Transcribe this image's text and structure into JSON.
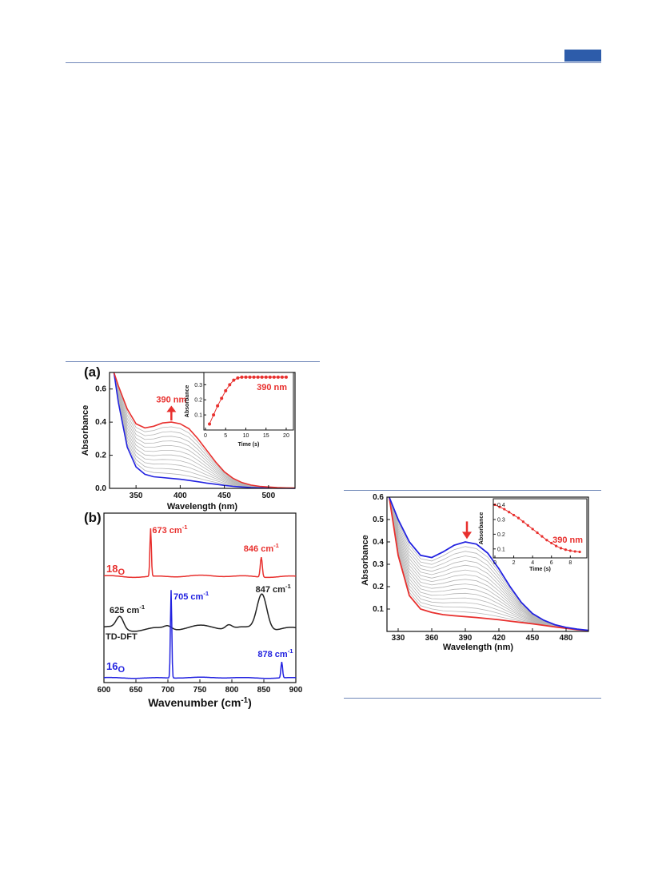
{
  "colors": {
    "rule": "#6f87b8",
    "badge": "#2d5caa",
    "red": "#e8302e",
    "blue": "#2222e0",
    "gray": "#b5b5b5",
    "black": "#222222"
  },
  "chart_data": [
    {
      "type": "line",
      "panel": "(a)",
      "xlabel": "Wavelength (nm)",
      "ylabel": "Absorbance",
      "xlim": [
        320,
        530
      ],
      "ylim": [
        0,
        0.7
      ],
      "xticks": [
        350,
        400,
        450,
        500
      ],
      "yticks": [
        0.0,
        0.2,
        0.4,
        0.6
      ],
      "annotation": "390 nm",
      "series": [
        {
          "role": "final",
          "color": "#e8302e",
          "x": [
            325,
            330,
            340,
            350,
            360,
            370,
            380,
            390,
            400,
            410,
            420,
            430,
            440,
            450,
            460,
            470,
            480,
            490,
            500,
            510,
            520,
            530
          ],
          "y": [
            0.7,
            0.62,
            0.48,
            0.39,
            0.365,
            0.375,
            0.395,
            0.4,
            0.39,
            0.36,
            0.3,
            0.23,
            0.16,
            0.1,
            0.06,
            0.035,
            0.02,
            0.012,
            0.008,
            0.005,
            0.003,
            0.002
          ]
        },
        {
          "role": "initial",
          "color": "#2222e0",
          "x": [
            325,
            330,
            340,
            350,
            360,
            370,
            380,
            390,
            400,
            410,
            420,
            430,
            440,
            450,
            460,
            470,
            480,
            490,
            500,
            510,
            520,
            530
          ],
          "y": [
            0.7,
            0.52,
            0.25,
            0.13,
            0.085,
            0.07,
            0.065,
            0.06,
            0.055,
            0.048,
            0.04,
            0.032,
            0.025,
            0.018,
            0.012,
            0.008,
            0.005,
            0.003,
            0.002,
            0.001,
            0.001,
            0.0
          ]
        }
      ],
      "inset": {
        "xlabel": "Time (s)",
        "ylabel": "Absorbance",
        "label": "390 nm",
        "xlim": [
          0,
          21
        ],
        "ylim": [
          0,
          0.36
        ],
        "xticks": [
          0,
          5,
          10,
          15,
          20
        ],
        "yticks": [
          0.1,
          0.2,
          0.3
        ],
        "x": [
          1,
          2,
          3,
          4,
          5,
          6,
          7,
          8,
          9,
          10,
          11,
          12,
          13,
          14,
          15,
          16,
          17,
          18,
          19,
          20
        ],
        "y": [
          0.04,
          0.1,
          0.16,
          0.21,
          0.26,
          0.3,
          0.33,
          0.345,
          0.35,
          0.35,
          0.35,
          0.35,
          0.35,
          0.35,
          0.35,
          0.35,
          0.35,
          0.35,
          0.35,
          0.35
        ]
      }
    },
    {
      "type": "line",
      "panel": "(b)",
      "xlabel": "Wavenumber (cm",
      "xlabel_sup": "-1",
      "xlabel_close": ")",
      "xlim": [
        600,
        900
      ],
      "xticks": [
        600,
        650,
        700,
        750,
        800,
        850,
        900
      ],
      "series": [
        {
          "name": "18O",
          "name_main": "18",
          "name_sub": "O",
          "color": "#e8302e",
          "peaks": [
            {
              "label": "673 cm",
              "sup": "-1",
              "x": 673
            },
            {
              "label": "846 cm",
              "sup": "-1",
              "x": 846
            }
          ]
        },
        {
          "name": "TD-DFT",
          "color": "#222222",
          "peaks": [
            {
              "label": "625 cm",
              "sup": "-1",
              "x": 625
            },
            {
              "label": "847 cm",
              "sup": "-1",
              "x": 847
            }
          ]
        },
        {
          "name": "16O",
          "name_main": "16",
          "name_sub": "O",
          "color": "#2222e0",
          "peaks": [
            {
              "label": "705 cm",
              "sup": "-1",
              "x": 705
            },
            {
              "label": "878 cm",
              "sup": "-1",
              "x": 878
            }
          ]
        }
      ]
    },
    {
      "type": "line",
      "xlabel": "Wavelength (nm)",
      "ylabel": "Absorbance",
      "xlim": [
        320,
        500
      ],
      "ylim": [
        0,
        0.6
      ],
      "xticks": [
        330,
        360,
        390,
        420,
        450,
        480
      ],
      "yticks": [
        0.1,
        0.2,
        0.3,
        0.4,
        0.5,
        0.6
      ],
      "series": [
        {
          "role": "initial",
          "color": "#2222e0",
          "x": [
            322,
            330,
            340,
            350,
            360,
            370,
            380,
            390,
            400,
            410,
            420,
            430,
            440,
            450,
            460,
            470,
            480,
            490,
            500
          ],
          "y": [
            0.6,
            0.5,
            0.4,
            0.34,
            0.33,
            0.355,
            0.385,
            0.4,
            0.39,
            0.35,
            0.28,
            0.2,
            0.13,
            0.08,
            0.05,
            0.03,
            0.018,
            0.01,
            0.005
          ]
        },
        {
          "role": "final",
          "color": "#e8302e",
          "x": [
            322,
            330,
            340,
            350,
            360,
            370,
            380,
            390,
            400,
            410,
            420,
            430,
            440,
            450,
            460,
            470,
            480,
            490,
            500
          ],
          "y": [
            0.6,
            0.34,
            0.16,
            0.1,
            0.085,
            0.075,
            0.07,
            0.066,
            0.062,
            0.057,
            0.052,
            0.046,
            0.04,
            0.034,
            0.027,
            0.02,
            0.014,
            0.008,
            0.004
          ]
        }
      ],
      "inset": {
        "ylabel": "Absorbance",
        "xlabel": "Time (s)",
        "label": "390 nm",
        "xlim": [
          0,
          9.5
        ],
        "ylim": [
          0.05,
          0.43
        ],
        "xticks": [
          0,
          2,
          4,
          6,
          8
        ],
        "yticks": [
          0.1,
          0.2,
          0.3,
          0.4
        ],
        "x": [
          0,
          0.5,
          1,
          1.5,
          2,
          2.5,
          3,
          3.5,
          4,
          4.5,
          5,
          5.5,
          6,
          6.5,
          7,
          7.5,
          8,
          8.5,
          9
        ],
        "y": [
          0.4,
          0.385,
          0.37,
          0.35,
          0.33,
          0.31,
          0.285,
          0.26,
          0.235,
          0.21,
          0.185,
          0.16,
          0.14,
          0.12,
          0.105,
          0.095,
          0.088,
          0.083,
          0.08
        ]
      }
    }
  ]
}
